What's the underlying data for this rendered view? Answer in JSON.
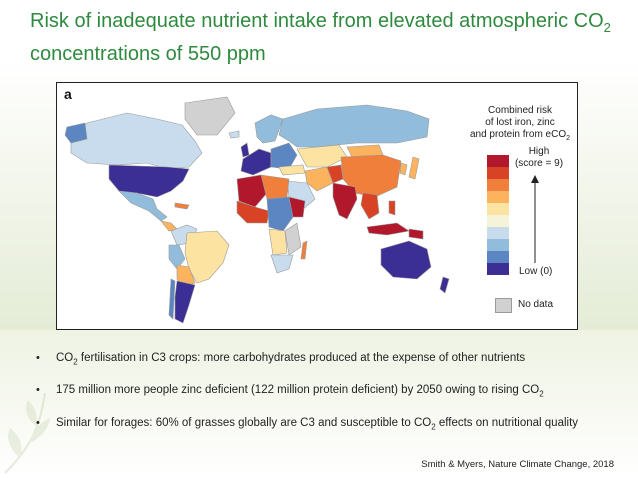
{
  "slide": {
    "title_main": "Risk of inadequate nutrient intake from elevated atmospheric CO",
    "title_sub": "2",
    "title_end": "concentrations of 550 ppm"
  },
  "map": {
    "panel_label": "a",
    "legend": {
      "title_line1": "Combined risk",
      "title_line2": "of lost iron, zinc",
      "title_line3_main": "and protein from eCO",
      "title_line3_sub": "2",
      "high_line1": "High",
      "high_line2": "(score = 9)",
      "low_label": "Low (0)",
      "no_data_label": "No data",
      "scale_colors": [
        "#b2182b",
        "#d94325",
        "#f07f3c",
        "#fbb35e",
        "#fde3a1",
        "#f6f4d8",
        "#c8dcee",
        "#91bcdc",
        "#5b86c2",
        "#3b2e95"
      ]
    },
    "colors": {
      "ocean": "#ffffff",
      "no_data": "#d1d1d1",
      "border": "#9a9a9a"
    }
  },
  "bullets": [
    {
      "parts": [
        "CO",
        "2",
        " fertilisation in C3 crops: more carbohydrates produced at the expense of other nutrients"
      ]
    },
    {
      "parts": [
        "175 million more people zinc deficient (122 million protein deficient) by 2050 owing to rising CO",
        "2",
        ""
      ]
    },
    {
      "parts": [
        "Similar for forages: 60% of grasses globally are C3 and susceptible to CO",
        "2",
        " effects on nutritional quality"
      ]
    }
  ],
  "bullet_symbol": "•",
  "citation": "Smith & Myers, Nature Climate Change, 2018",
  "theme": {
    "title_color": "#2e8a3e"
  }
}
